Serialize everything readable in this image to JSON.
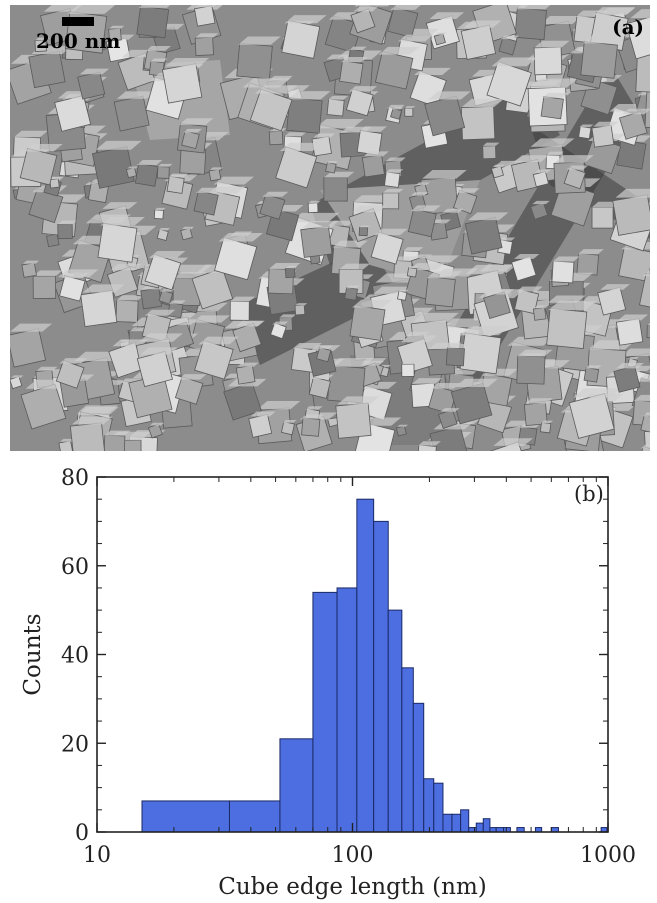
{
  "panel_a": {
    "label": "(a)",
    "scale_bar_label": "200 nm"
  },
  "colors": {
    "bar_fill": "#4c6ee0",
    "bar_edge": "#1b2a66",
    "axis": "#222222"
  },
  "chart_data": {
    "type": "bar",
    "panel_label": "(b)",
    "title": "",
    "xlabel": "Cube edge length (nm)",
    "ylabel": "Counts",
    "xscale": "log",
    "xlim": [
      10,
      1000
    ],
    "ylim": [
      0,
      80
    ],
    "x_ticks": [
      10,
      100,
      1000
    ],
    "y_ticks": [
      0,
      20,
      40,
      60,
      80
    ],
    "grid": false,
    "bins": [
      {
        "x0": 15,
        "x1": 33,
        "count": 7
      },
      {
        "x0": 33,
        "x1": 52,
        "count": 7
      },
      {
        "x0": 52,
        "x1": 70,
        "count": 21
      },
      {
        "x0": 70,
        "x1": 87,
        "count": 54
      },
      {
        "x0": 87,
        "x1": 104,
        "count": 55
      },
      {
        "x0": 104,
        "x1": 121,
        "count": 75
      },
      {
        "x0": 121,
        "x1": 138,
        "count": 70
      },
      {
        "x0": 138,
        "x1": 156,
        "count": 50
      },
      {
        "x0": 156,
        "x1": 173,
        "count": 37
      },
      {
        "x0": 173,
        "x1": 190,
        "count": 29
      },
      {
        "x0": 190,
        "x1": 208,
        "count": 12
      },
      {
        "x0": 208,
        "x1": 226,
        "count": 11
      },
      {
        "x0": 226,
        "x1": 245,
        "count": 4
      },
      {
        "x0": 245,
        "x1": 265,
        "count": 4
      },
      {
        "x0": 265,
        "x1": 285,
        "count": 5
      },
      {
        "x0": 285,
        "x1": 305,
        "count": 1
      },
      {
        "x0": 305,
        "x1": 325,
        "count": 2
      },
      {
        "x0": 325,
        "x1": 345,
        "count": 3
      },
      {
        "x0": 345,
        "x1": 365,
        "count": 1
      },
      {
        "x0": 365,
        "x1": 390,
        "count": 1
      },
      {
        "x0": 390,
        "x1": 415,
        "count": 1
      },
      {
        "x0": 440,
        "x1": 470,
        "count": 1
      },
      {
        "x0": 520,
        "x1": 550,
        "count": 1
      },
      {
        "x0": 600,
        "x1": 640,
        "count": 1
      },
      {
        "x0": 940,
        "x1": 990,
        "count": 1
      }
    ]
  }
}
